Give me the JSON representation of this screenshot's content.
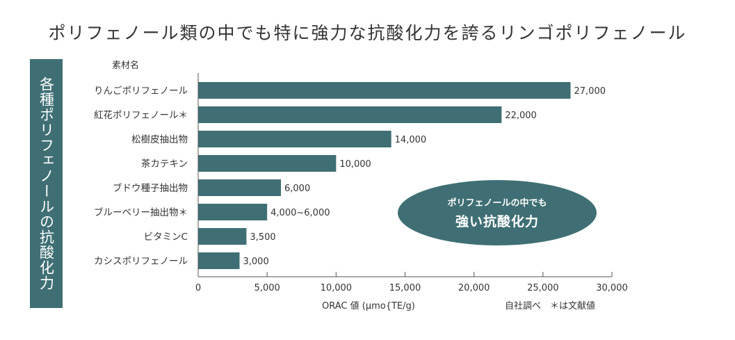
{
  "title": "ポリフェノール類の中でも特に強力な抗酸化力を誇るリンゴポリフェノール",
  "side_label": "各種ポリフェノールの抗酸化力",
  "category_header": "素材名",
  "axis_title": "ORAC 値 (μmo{TE/g)",
  "notes": "自社調べ　＊は文献値",
  "callout": {
    "line1": "ポリフェノールの中でも",
    "line2": "強い抗酸化力"
  },
  "colors": {
    "bar": "#3f6f74",
    "band": "#3f6f74"
  },
  "chart_data": {
    "type": "bar",
    "orientation": "horizontal",
    "categories": [
      "りんごポリフェノール",
      "紅花ポリフェノール＊",
      "松樹皮抽出物",
      "茶カテキン",
      "ブドウ種子抽出物",
      "ブルーベリー抽出物＊",
      "ビタミンC",
      "カシスポリフェノール"
    ],
    "values": [
      27000,
      22000,
      14000,
      10000,
      6000,
      5000,
      3500,
      3000
    ],
    "value_labels": [
      "27,000",
      "22,000",
      "14,000",
      "10,000",
      "6,000",
      "4,000~6,000",
      "3,500",
      "3,000"
    ],
    "xlim": [
      0,
      30000
    ],
    "xticks": [
      0,
      5000,
      10000,
      15000,
      20000,
      25000,
      30000
    ],
    "xtick_labels": [
      "0",
      "5,000",
      "10,000",
      "15,000",
      "20,000",
      "25,000",
      "30,000"
    ],
    "xlabel": "ORAC 値 (μmo{TE/g)",
    "ylabel": "素材名",
    "grid": false
  }
}
